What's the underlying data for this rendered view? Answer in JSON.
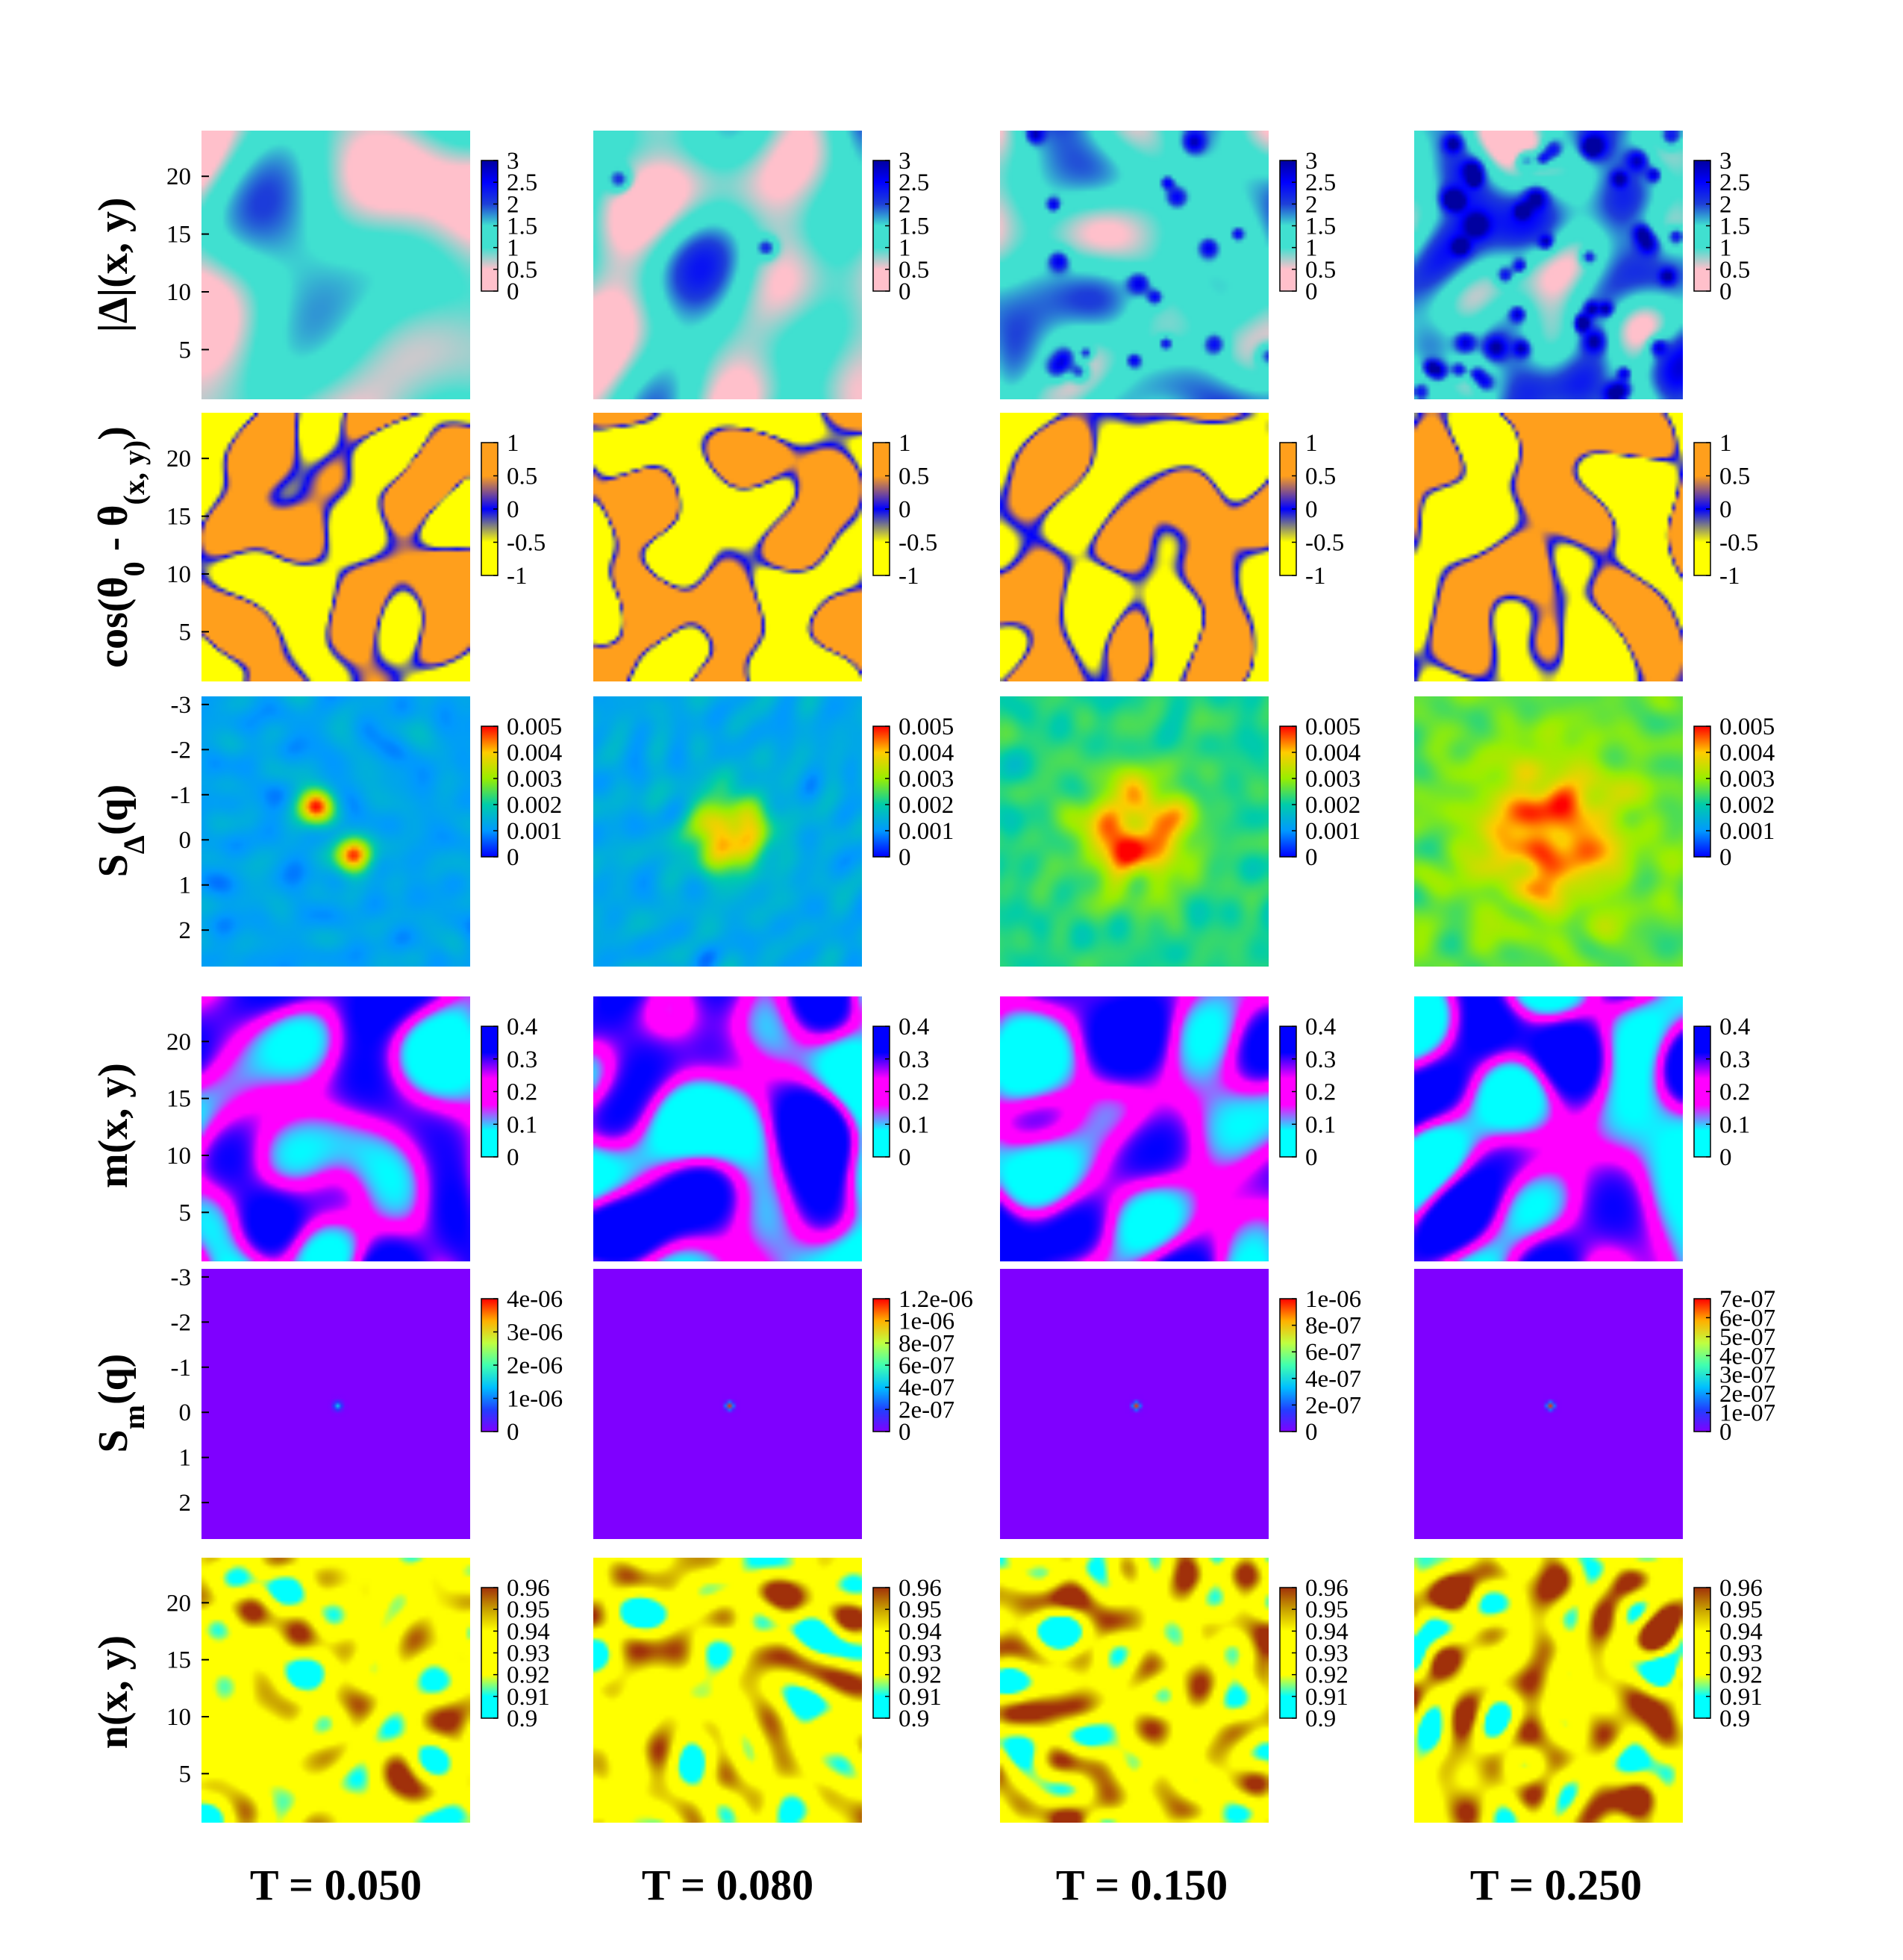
{
  "chart_data": {
    "type": "heatmap",
    "layout": "grid of 6 rows x 4 columns of 2D colormap panels",
    "columns": [
      {
        "label": "T = 0.050",
        "T": 0.05
      },
      {
        "label": "T = 0.080",
        "T": 0.08
      },
      {
        "label": "T = 0.150",
        "T": 0.15
      },
      {
        "label": "T = 0.250",
        "T": 0.25
      }
    ],
    "rows": [
      {
        "id": "delta",
        "ylabel": "|Δ|(x, y)",
        "yticks": [
          "20",
          "15",
          "10",
          "5"
        ],
        "colorbar_ticks": [
          "3",
          "2.5",
          "2",
          "1.5",
          "1",
          "0.5",
          "0"
        ],
        "colorbar_range": [
          0,
          3
        ],
        "palette": [
          "#ffc0cb",
          "#ffc0cb",
          "#40e0d0",
          "#40e0d0",
          "#1e40d8",
          "#0000ff",
          "#0000a0"
        ],
        "panels": [
          {
            "mean": 0.95,
            "std": 0.45,
            "blob": 0.025,
            "spots": 0
          },
          {
            "mean": 1.0,
            "std": 0.45,
            "blob": 0.03,
            "spots": 2
          },
          {
            "mean": 1.25,
            "std": 0.5,
            "blob": 0.035,
            "spots": 18
          },
          {
            "mean": 1.45,
            "std": 0.5,
            "blob": 0.04,
            "spots": 45
          }
        ]
      },
      {
        "id": "cos",
        "ylabel": "cos(θ0 - θ(x, y))",
        "ylabel_parts": {
          "pre": "cos(θ",
          "sub0": "0",
          "mid": " - θ",
          "sub1": "(x, y)",
          "post": ")"
        },
        "yticks": [
          "20",
          "15",
          "10",
          "5"
        ],
        "colorbar_ticks": [
          "1",
          "0.5",
          "0",
          "-0.5",
          "-1"
        ],
        "colorbar_range": [
          -1,
          1
        ],
        "palette": [
          "#ffff00",
          "#ffff00",
          "#0000ff",
          "#ff9f1c",
          "#ff9f1c"
        ],
        "panels": [
          {
            "blob": 0.04
          },
          {
            "blob": 0.045
          },
          {
            "blob": 0.05
          },
          {
            "blob": 0.05
          }
        ]
      },
      {
        "id": "sdelta",
        "ylabel": "SΔ(q)",
        "ylabel_parts": {
          "pre": "S",
          "sub": "Δ",
          "post": "(q)"
        },
        "yticks": [
          "-3",
          "-2",
          "-1",
          "0",
          "1",
          "2"
        ],
        "colorbar_ticks": [
          "0.005",
          "0.004",
          "0.003",
          "0.002",
          "0.001",
          "0"
        ],
        "colorbar_range": [
          0,
          0.005
        ],
        "palette": [
          "#0000ff",
          "#0099ff",
          "#00ccaa",
          "#99ee00",
          "#ffcc00",
          "#ff0000"
        ],
        "panels": [
          {
            "background": 0.0012,
            "peak": 0.0048,
            "width": 0.25,
            "shape": "two-lobes"
          },
          {
            "background": 0.0013,
            "peak": 0.0044,
            "width": 0.4,
            "shape": "blob"
          },
          {
            "background": 0.0022,
            "peak": 0.0048,
            "width": 0.55,
            "shape": "blob"
          },
          {
            "background": 0.0026,
            "peak": 0.0047,
            "width": 0.75,
            "shape": "blob"
          }
        ]
      },
      {
        "id": "m",
        "ylabel": "m(x, y)",
        "yticks": [
          "20",
          "15",
          "10",
          "5"
        ],
        "colorbar_ticks": [
          "0.4",
          "0.3",
          "0.2",
          "0.1",
          "0"
        ],
        "colorbar_range": [
          0,
          0.4
        ],
        "palette": [
          "#00ffff",
          "#00ffff",
          "#ff00ff",
          "#ff00ff",
          "#0000ff",
          "#0000ff"
        ],
        "panels": [
          {
            "blob": 0.045
          },
          {
            "blob": 0.05
          },
          {
            "blob": 0.05
          },
          {
            "blob": 0.045
          }
        ]
      },
      {
        "id": "sm",
        "ylabel": "Sm(q)",
        "ylabel_parts": {
          "pre": "S",
          "sub": "m",
          "post": "(q)"
        },
        "yticks": [
          "-3",
          "-2",
          "-1",
          "0",
          "1",
          "2"
        ],
        "palette": [
          "#7f00ff",
          "#2040ff",
          "#00c0ff",
          "#40ffb0",
          "#c0ff40",
          "#ffb000",
          "#ff0000"
        ],
        "panels": [
          {
            "colorbar_ticks": [
              "4e-06",
              "3e-06",
              "2e-06",
              "1e-06",
              "0"
            ],
            "colorbar_range": [
              0,
              4.5e-06
            ],
            "peak": 1.6e-06,
            "width": 0.09
          },
          {
            "colorbar_ticks": [
              "1.2e-06",
              "1e-06",
              "8e-07",
              "6e-07",
              "4e-07",
              "2e-07",
              "0"
            ],
            "colorbar_range": [
              0,
              1.3e-06
            ],
            "peak": 1.25e-06,
            "width": 0.07
          },
          {
            "colorbar_ticks": [
              "1e-06",
              "8e-07",
              "6e-07",
              "4e-07",
              "2e-07",
              "0"
            ],
            "colorbar_range": [
              0,
              1.1e-06
            ],
            "peak": 1.05e-06,
            "width": 0.07
          },
          {
            "colorbar_ticks": [
              "7e-07",
              "6e-07",
              "5e-07",
              "4e-07",
              "3e-07",
              "2e-07",
              "1e-07",
              "0"
            ],
            "colorbar_range": [
              0,
              7.5e-07
            ],
            "peak": 7.2e-07,
            "width": 0.07
          }
        ]
      },
      {
        "id": "n",
        "ylabel": "n(x, y)",
        "yticks": [
          "20",
          "15",
          "10",
          "5"
        ],
        "colorbar_ticks": [
          "0.96",
          "0.95",
          "0.94",
          "0.93",
          "0.92",
          "0.91",
          "0.9"
        ],
        "colorbar_range": [
          0.9,
          0.96
        ],
        "palette": [
          "#00ffff",
          "#00ffff",
          "#ffff00",
          "#ffff00",
          "#ffff00",
          "#c8a000",
          "#a0300a"
        ],
        "panels": [
          {
            "mean": 0.932,
            "std": 0.012
          },
          {
            "mean": 0.933,
            "std": 0.013
          },
          {
            "mean": 0.935,
            "std": 0.014
          },
          {
            "mean": 0.938,
            "std": 0.016
          }
        ]
      }
    ]
  }
}
